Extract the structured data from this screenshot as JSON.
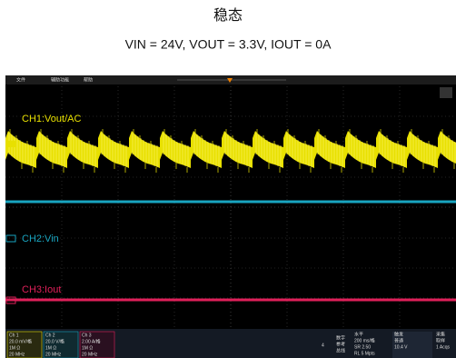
{
  "header": {
    "title": "稳态",
    "subtitle": "VIN = 24V, VOUT = 3.3V, IOUT = 0A"
  },
  "menu": [
    "文件",
    "辅助功能",
    "帮助"
  ],
  "channels": [
    {
      "label": "CH1:Vout/AC"
    },
    {
      "label": "CH2:Vin"
    },
    {
      "label": "CH3:Iout"
    }
  ],
  "status": {
    "ch1": [
      "Ch 1",
      "20.0 mV/格",
      "1M Ω",
      "20 MHz"
    ],
    "ch2": [
      "Ch 2",
      "20.0 V/格",
      "1M Ω",
      "20 MHz"
    ],
    "ch3": [
      "Ch 3",
      "2.00 A/格",
      "1M Ω",
      "20 MHz"
    ],
    "count": "4",
    "digital": [
      "数字",
      "参考",
      "总线"
    ],
    "horizontal": [
      "水平",
      "200 ms/格",
      "SR 2.50",
      "RL 5 Mpts"
    ],
    "trigger": [
      "触发",
      "普通",
      "10.4 V"
    ],
    "acquire": [
      "采集",
      "取样",
      "1 Acqs"
    ]
  }
}
